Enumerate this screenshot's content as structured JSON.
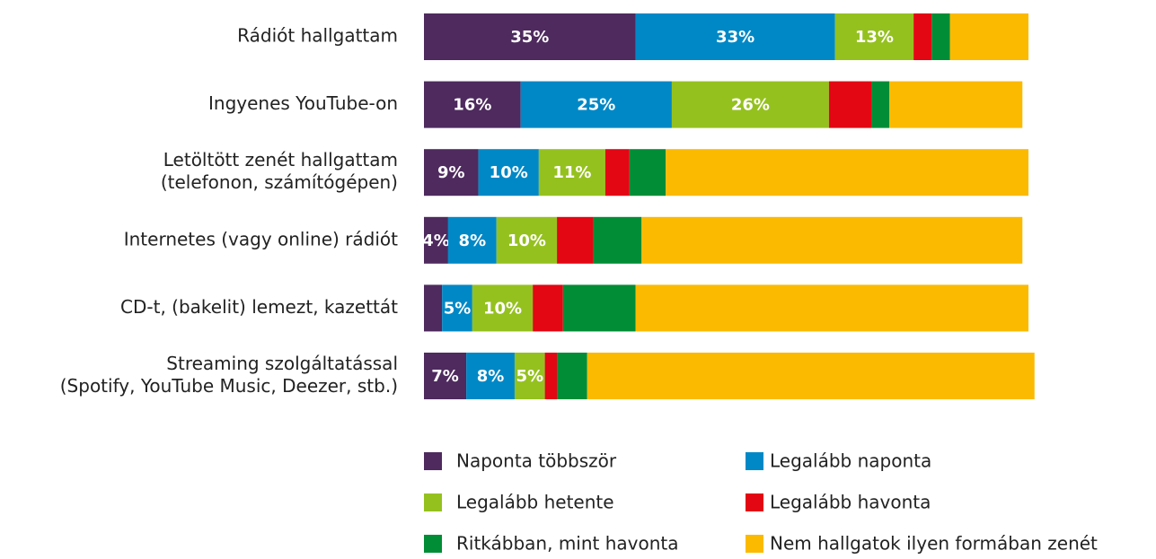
{
  "chart_data": {
    "type": "stacked-barh",
    "categories": [
      [
        "Rádiót hallgattam"
      ],
      [
        "Ingyenes YouTube-on"
      ],
      [
        "Letöltött zenét hallgattam",
        "(telefonon, számítógépen)"
      ],
      [
        "Internetes (vagy online) rádiót"
      ],
      [
        "CD-t, (bakelit) lemezt, kazettát"
      ],
      [
        "Streaming szolgáltatással",
        "(Spotify, YouTube Music, Deezer, stb.)"
      ]
    ],
    "xlim": [
      0,
      100
    ],
    "series": [
      {
        "name": "Naponta többször",
        "color": "#4e2a5e",
        "values": [
          35,
          16,
          9,
          4,
          3,
          7
        ],
        "value_labels": [
          "35%",
          "16%",
          "9%",
          "4%",
          null,
          "7%"
        ]
      },
      {
        "name": "Legalább naponta",
        "color": "#0088c6",
        "values": [
          33,
          25,
          10,
          8,
          5,
          8
        ],
        "value_labels": [
          "33%",
          "25%",
          "10%",
          "8%",
          "5%",
          "8%"
        ]
      },
      {
        "name": "Legalább hetente",
        "color": "#95c11f",
        "values": [
          13,
          26,
          11,
          10,
          10,
          5
        ],
        "value_labels": [
          "13%",
          "26%",
          "11%",
          "10%",
          "10%",
          "5%"
        ]
      },
      {
        "name": "Legalább havonta",
        "color": "#e30613",
        "values": [
          3,
          7,
          4,
          6,
          5,
          2
        ],
        "value_labels": [
          null,
          null,
          null,
          null,
          null,
          null
        ]
      },
      {
        "name": "Ritkábban, mint havonta",
        "color": "#008d36",
        "values": [
          3,
          3,
          6,
          8,
          12,
          5
        ],
        "value_labels": [
          null,
          null,
          null,
          null,
          null,
          null
        ]
      },
      {
        "name": "Nem hallgatok ilyen formában zenét",
        "color": "#fbba00",
        "values": [
          13,
          22,
          60,
          63,
          65,
          74
        ],
        "value_labels": [
          null,
          null,
          null,
          null,
          null,
          null
        ]
      }
    ]
  }
}
